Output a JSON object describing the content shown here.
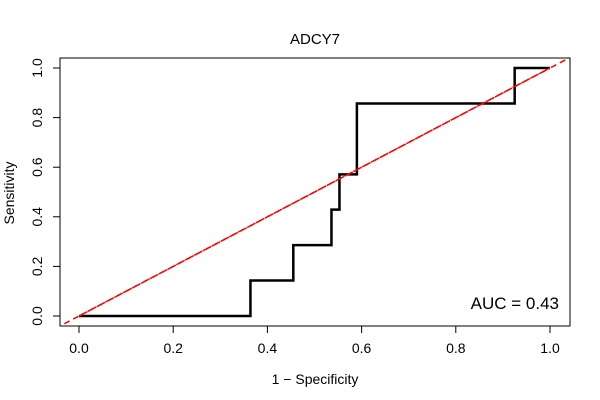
{
  "chart_data": {
    "type": "line",
    "title": "ADCY7",
    "xlabel": "1 − Specificity",
    "ylabel": "Sensitivity",
    "xlim": [
      0,
      1
    ],
    "ylim": [
      0,
      1
    ],
    "x_ticks": [
      "0.0",
      "0.2",
      "0.4",
      "0.6",
      "0.8",
      "1.0"
    ],
    "y_ticks": [
      "0.0",
      "0.2",
      "0.4",
      "0.6",
      "0.8",
      "1.0"
    ],
    "grid": false,
    "series": [
      {
        "style": "solid",
        "color": "#000000",
        "points": [
          [
            0.0,
            0.0
          ],
          [
            0.364,
            0.0
          ],
          [
            0.364,
            0.143
          ],
          [
            0.455,
            0.143
          ],
          [
            0.455,
            0.286
          ],
          [
            0.536,
            0.286
          ],
          [
            0.536,
            0.429
          ],
          [
            0.553,
            0.429
          ],
          [
            0.553,
            0.571
          ],
          [
            0.59,
            0.571
          ],
          [
            0.59,
            0.857
          ],
          [
            0.925,
            0.857
          ],
          [
            0.925,
            1.0
          ],
          [
            1.0,
            1.0
          ]
        ]
      },
      {
        "style": "dashed",
        "color": "#ff0000",
        "points": [
          [
            0.0,
            0.0
          ],
          [
            1.0,
            1.0
          ]
        ]
      }
    ],
    "annotations": [
      {
        "text": "AUC = 0.43",
        "position": "bottom-right"
      }
    ]
  }
}
